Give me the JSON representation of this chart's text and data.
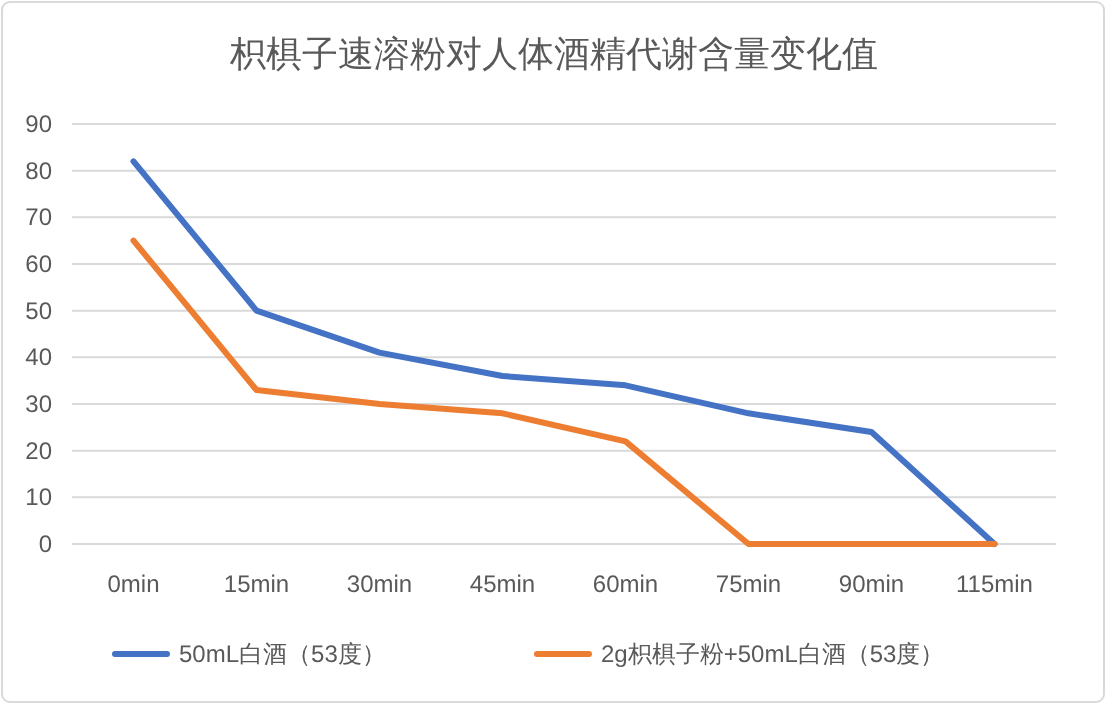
{
  "chart_data": {
    "type": "line",
    "title": "枳椇子速溶粉对人体酒精代谢含量变化值",
    "categories": [
      "0min",
      "15min",
      "30min",
      "45min",
      "60min",
      "75min",
      "90min",
      "115min"
    ],
    "series": [
      {
        "name": "50mL白酒（53度）",
        "color": "#4472c4",
        "values": [
          82,
          50,
          41,
          36,
          34,
          28,
          24,
          0
        ]
      },
      {
        "name": "2g枳椇子粉+50mL白酒（53度）",
        "color": "#ed7d31",
        "values": [
          65,
          33,
          30,
          28,
          22,
          0,
          0,
          0
        ]
      }
    ],
    "ylim": [
      0,
      90
    ],
    "yticks": [
      0,
      10,
      20,
      30,
      40,
      50,
      60,
      70,
      80,
      90
    ],
    "grid": "y",
    "legend": "bottom",
    "marker": "none",
    "line_style": "solid"
  }
}
